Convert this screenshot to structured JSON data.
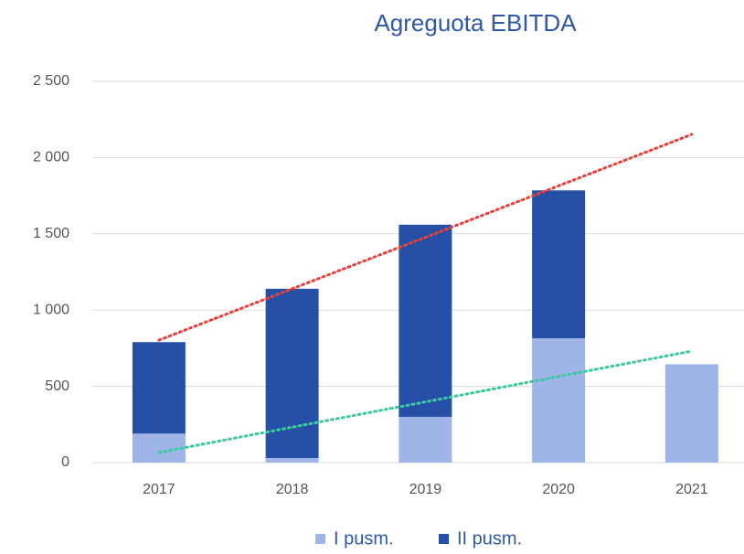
{
  "chart_data": {
    "type": "bar",
    "stacked": true,
    "title": "Agreguota EBITDA",
    "categories": [
      "2017",
      "2018",
      "2019",
      "2020",
      "2021"
    ],
    "series": [
      {
        "name": "I pusm.",
        "color": "#9fb5e8",
        "values": [
          190,
          30,
          300,
          815,
          645
        ]
      },
      {
        "name": "II pusm.",
        "color": "#2650a5",
        "values": [
          600,
          1110,
          1260,
          970,
          null
        ]
      }
    ],
    "trendlines": [
      {
        "color": "#e8413c",
        "values": [
          803,
          1140,
          1477,
          1815,
          2152
        ]
      },
      {
        "color": "#3dc9a0",
        "values": [
          66,
          232,
          398,
          565,
          731
        ]
      }
    ],
    "ylim": [
      0,
      2500
    ],
    "yticks": [
      0,
      500,
      {
        "value": 1000,
        "label": "1 000"
      },
      {
        "value": 1500,
        "label": "1 500"
      },
      {
        "value": 2000,
        "label": "2 000"
      },
      {
        "value": 2500,
        "label": "2 500"
      }
    ],
    "grid": true,
    "legend": "bottom"
  }
}
